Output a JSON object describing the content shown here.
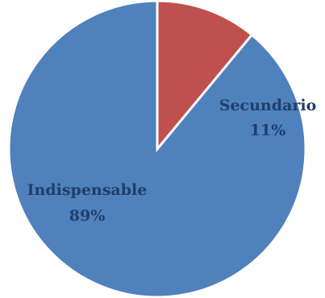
{
  "chart_data": {
    "type": "pie",
    "slices": [
      {
        "label": "Indispensable",
        "value": 89,
        "display": "89%",
        "color": "#4f81bd"
      },
      {
        "label": "Secundario",
        "value": 11,
        "display": "11%",
        "color": "#c0504d"
      }
    ],
    "title": "",
    "legend": "none"
  }
}
